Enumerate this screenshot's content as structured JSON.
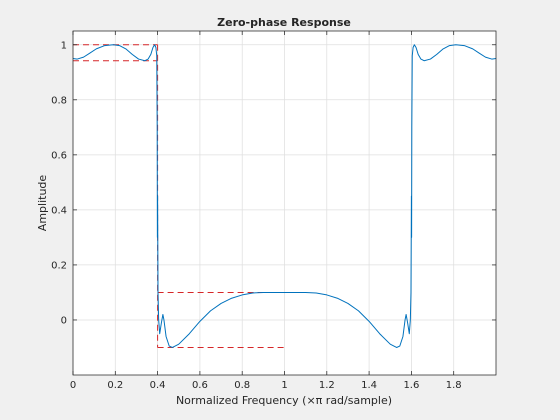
{
  "chart_data": {
    "type": "line",
    "title": "Zero-phase Response",
    "xlabel_prefix": "Normalized Frequency  (",
    "xlabel_symbol": "×π",
    "xlabel_suffix": " rad/sample)",
    "ylabel": "Amplitude",
    "xlim": [
      0,
      2
    ],
    "ylim": [
      -0.2,
      1.05
    ],
    "xticks": [
      0,
      0.2,
      0.4,
      0.6,
      0.8,
      1,
      1.2,
      1.4,
      1.6,
      1.8
    ],
    "xtick_labels": [
      "0",
      "0.2",
      "0.4",
      "0.6",
      "0.8",
      "1",
      "1.2",
      "1.4",
      "1.6",
      "1.8"
    ],
    "yticks": [
      0,
      0.2,
      0.4,
      0.6,
      0.8,
      1
    ],
    "ytick_labels": [
      "0",
      "0.2",
      "0.4",
      "0.6",
      "0.8",
      "1"
    ],
    "grid": true,
    "series": [
      {
        "style": "solid",
        "color": "#0072bd",
        "points": [
          [
            0,
            0.95
          ],
          [
            0.02,
            0.948
          ],
          [
            0.05,
            0.955
          ],
          [
            0.08,
            0.97
          ],
          [
            0.11,
            0.985
          ],
          [
            0.15,
            0.997
          ],
          [
            0.19,
            1.0
          ],
          [
            0.22,
            0.997
          ],
          [
            0.25,
            0.985
          ],
          [
            0.28,
            0.965
          ],
          [
            0.31,
            0.948
          ],
          [
            0.34,
            0.942
          ],
          [
            0.355,
            0.948
          ],
          [
            0.368,
            0.965
          ],
          [
            0.378,
            0.99
          ],
          [
            0.386,
            1.0
          ],
          [
            0.392,
            0.99
          ],
          [
            0.396,
            0.96
          ],
          [
            0.398,
            0.7
          ],
          [
            0.399,
            0.3
          ],
          [
            0.4,
            0.45
          ],
          [
            0.402,
            0.1
          ],
          [
            0.405,
            0.0
          ],
          [
            0.41,
            -0.05
          ],
          [
            0.418,
            -0.01
          ],
          [
            0.425,
            0.02
          ],
          [
            0.43,
            0.0
          ],
          [
            0.44,
            -0.06
          ],
          [
            0.455,
            -0.095
          ],
          [
            0.47,
            -0.1
          ],
          [
            0.5,
            -0.088
          ],
          [
            0.55,
            -0.05
          ],
          [
            0.6,
            -0.005
          ],
          [
            0.65,
            0.033
          ],
          [
            0.7,
            0.06
          ],
          [
            0.75,
            0.079
          ],
          [
            0.8,
            0.091
          ],
          [
            0.85,
            0.098
          ],
          [
            0.9,
            0.1
          ],
          [
            0.95,
            0.1
          ],
          [
            1.0,
            0.1
          ],
          [
            1.05,
            0.1
          ],
          [
            1.1,
            0.1
          ],
          [
            1.15,
            0.098
          ],
          [
            1.2,
            0.091
          ],
          [
            1.25,
            0.079
          ],
          [
            1.3,
            0.06
          ],
          [
            1.35,
            0.033
          ],
          [
            1.4,
            -0.005
          ],
          [
            1.45,
            -0.05
          ],
          [
            1.5,
            -0.088
          ],
          [
            1.53,
            -0.1
          ],
          [
            1.545,
            -0.095
          ],
          [
            1.56,
            -0.06
          ],
          [
            1.57,
            0.0
          ],
          [
            1.575,
            0.02
          ],
          [
            1.582,
            -0.01
          ],
          [
            1.59,
            -0.05
          ],
          [
            1.595,
            0.0
          ],
          [
            1.598,
            0.1
          ],
          [
            1.6,
            0.45
          ],
          [
            1.601,
            0.3
          ],
          [
            1.602,
            0.7
          ],
          [
            1.604,
            0.96
          ],
          [
            1.608,
            0.99
          ],
          [
            1.614,
            1.0
          ],
          [
            1.622,
            0.99
          ],
          [
            1.632,
            0.965
          ],
          [
            1.645,
            0.948
          ],
          [
            1.66,
            0.942
          ],
          [
            1.69,
            0.948
          ],
          [
            1.72,
            0.965
          ],
          [
            1.75,
            0.985
          ],
          [
            1.78,
            0.997
          ],
          [
            1.81,
            1.0
          ],
          [
            1.85,
            0.997
          ],
          [
            1.89,
            0.985
          ],
          [
            1.92,
            0.97
          ],
          [
            1.95,
            0.955
          ],
          [
            1.98,
            0.948
          ],
          [
            2.0,
            0.95
          ]
        ]
      }
    ],
    "spec_lines": {
      "color": "#d62728",
      "style": "dashed",
      "segments": [
        [
          [
            0,
            1.0
          ],
          [
            0.4,
            1.0
          ]
        ],
        [
          [
            0,
            0.942
          ],
          [
            0.4,
            0.942
          ]
        ],
        [
          [
            0.4,
            1.0
          ],
          [
            0.4,
            -0.1
          ]
        ],
        [
          [
            0.4,
            0.1
          ],
          [
            1.0,
            0.1
          ]
        ],
        [
          [
            0.4,
            -0.1
          ],
          [
            1.0,
            -0.1
          ]
        ]
      ]
    }
  }
}
